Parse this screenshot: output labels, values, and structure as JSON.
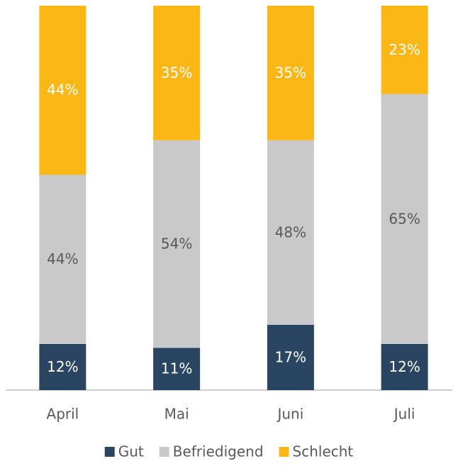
{
  "chart_data": {
    "type": "stacked_bar",
    "categories": [
      "April",
      "Mai",
      "Juni",
      "Juli"
    ],
    "series": [
      {
        "name": "Gut",
        "color": "#2a4562",
        "label_color": "#ffffff",
        "values": [
          12,
          11,
          17,
          12
        ],
        "value_labels": [
          "12%",
          "11%",
          "17%",
          "12%"
        ]
      },
      {
        "name": "Befriedigend",
        "color": "#c9c9c9",
        "label_color": "#595959",
        "values": [
          44,
          54,
          48,
          65
        ],
        "value_labels": [
          "44%",
          "54%",
          "48%",
          "65%"
        ]
      },
      {
        "name": "Schlecht",
        "color": "#fbb716",
        "label_color": "#ffffff",
        "values": [
          44,
          35,
          35,
          23
        ],
        "value_labels": [
          "44%",
          "35%",
          "35%",
          "23%"
        ]
      }
    ],
    "ylim": [
      0,
      100
    ],
    "legend": "bottom"
  }
}
